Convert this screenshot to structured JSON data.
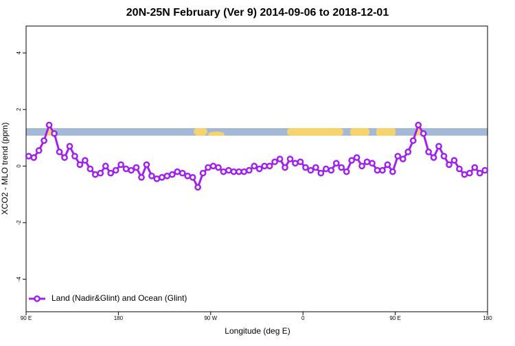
{
  "chart_data": {
    "type": "line",
    "title": "20N-25N February (Ver 9)   2014-09-06 to 2018-12-01",
    "x_label": "Longitude (deg E)",
    "y_label": "XCO2 - MLO trend (ppm)",
    "xlim": [
      90,
      540
    ],
    "ylim": [
      -5.15,
      4.95
    ],
    "xticks": [
      {
        "value": 90,
        "label": "90 E"
      },
      180,
      {
        "value": 270,
        "label": "90 W"
      },
      {
        "value": 360,
        "label": "0"
      },
      {
        "value": 450,
        "label": "90 E"
      },
      180
    ],
    "yticks": [
      -4,
      -2,
      0,
      2,
      4
    ],
    "legend": "bottom-left",
    "x": [
      92.5,
      97.5,
      102.5,
      107.5,
      112.5,
      117.5,
      122.5,
      127.5,
      132.5,
      137.5,
      142.5,
      147.5,
      152.5,
      157.5,
      162.5,
      167.5,
      172.5,
      177.5,
      182.5,
      187.5,
      192.5,
      197.5,
      202.5,
      207.5,
      212.5,
      217.5,
      222.5,
      227.5,
      232.5,
      237.5,
      242.5,
      247.5,
      252.5,
      257.5,
      262.5,
      267.5,
      272.5,
      277.5,
      282.5,
      287.5,
      292.5,
      297.5,
      302.5,
      307.5,
      312.5,
      317.5,
      322.5,
      327.5,
      332.5,
      337.5,
      342.5,
      347.5,
      352.5,
      357.5,
      362.5,
      367.5,
      372.5,
      377.5,
      382.5,
      387.5,
      392.5,
      397.5,
      402.5,
      407.5,
      412.5,
      417.5,
      422.5,
      427.5,
      432.5,
      437.5,
      442.5,
      447.5,
      452.5,
      457.5,
      462.5,
      467.5,
      472.5,
      477.5,
      482.5,
      487.5,
      492.5,
      497.5,
      502.5,
      507.5,
      512.5,
      517.5,
      522.5,
      527.5,
      532.5,
      537.5
    ],
    "series": [
      {
        "name": "Land (Nadir&Glint) and Ocean (Glint)",
        "color": "#a020f0",
        "values": [
          0.35,
          0.3,
          0.55,
          0.9,
          1.45,
          1.15,
          0.5,
          0.3,
          0.7,
          0.35,
          0.05,
          0.2,
          -0.1,
          -0.3,
          -0.25,
          0,
          -0.25,
          -0.15,
          0.05,
          -0.1,
          -0.15,
          -0.05,
          -0.4,
          0.05,
          -0.35,
          -0.45,
          -0.4,
          -0.35,
          -0.3,
          -0.2,
          -0.25,
          -0.35,
          -0.4,
          -0.75,
          -0.25,
          -0.05,
          0,
          -0.05,
          -0.2,
          -0.15,
          -0.2,
          -0.2,
          -0.2,
          -0.15,
          0,
          -0.1,
          0,
          0,
          0.15,
          0.25,
          -0.05,
          0.25,
          0.1,
          0.15,
          -0.05,
          -0.15,
          -0.05,
          -0.25,
          -0.1,
          -0.15,
          0.1,
          -0.05,
          -0.2,
          0.2,
          0.3,
          0,
          0.15,
          0.1,
          -0.15,
          -0.15,
          0.05,
          -0.2,
          0.35,
          0.25,
          0.5,
          0.9,
          1.45,
          1.15,
          0.5,
          0.3,
          0.7,
          0.35,
          0.05,
          0.2,
          -0.1,
          -0.3,
          -0.25,
          -0.05,
          -0.25,
          -0.15
        ]
      }
    ]
  }
}
